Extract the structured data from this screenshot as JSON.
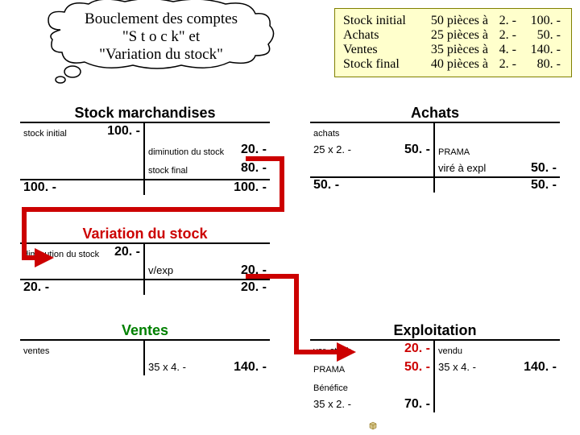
{
  "bubble": {
    "line1": "Bouclement des comptes",
    "line2": "\"S t o c k\" et",
    "line3": "\"Variation du stock\"",
    "stroke": "#000000",
    "fill": "#ffffff"
  },
  "info": {
    "bg": "#ffffcc",
    "border": "#808000",
    "rows": [
      {
        "label": "Stock initial",
        "qty": "50 pièces à",
        "price": "2. -",
        "total": "100. -"
      },
      {
        "label": "Achats",
        "qty": "25 pièces à",
        "price": "2. -",
        "total": "50. -"
      },
      {
        "label": "Ventes",
        "qty": "35 pièces à",
        "price": "4. -",
        "total": "140. -"
      },
      {
        "label": "Stock final",
        "qty": "40 pièces à",
        "price": "2. -",
        "total": "80. -"
      }
    ]
  },
  "accounts": {
    "stock": {
      "title": "Stock marchandises",
      "title_color": "black",
      "rows": [
        {
          "llabel": "stock initial",
          "lamt": "100. -",
          "rlabel": "",
          "ramt": ""
        },
        {
          "llabel": "",
          "lamt": "",
          "rlabel": "diminution du stock",
          "ramt": "20. -"
        },
        {
          "llabel": "",
          "lamt": "",
          "rlabel": "stock final",
          "ramt": "80. -"
        }
      ],
      "close": {
        "l": "100. -",
        "r": "100. -"
      }
    },
    "achats": {
      "title": "Achats",
      "title_color": "black",
      "rows": [
        {
          "llabel": "achats",
          "lamt": "",
          "rlabel": "",
          "ramt": ""
        },
        {
          "llabel": "25 x 2. -",
          "lamt": "50. -",
          "rlabel": "PRAMA",
          "ramt": ""
        },
        {
          "llabel": "",
          "lamt": "",
          "rlabel": "viré à expl",
          "ramt": "50. -"
        }
      ],
      "close": {
        "l": "50. -",
        "r": "50. -"
      }
    },
    "variation": {
      "title": "Variation du stock",
      "title_color": "red",
      "rows": [
        {
          "llabel": "diminution du stock",
          "lamt": "20. -",
          "rlabel": "",
          "ramt": ""
        },
        {
          "llabel": "",
          "lamt": "",
          "rlabel": "v/exp",
          "ramt": "20. -"
        }
      ],
      "close": {
        "l": "20. -",
        "r": "20. -"
      }
    },
    "ventes": {
      "title": "Ventes",
      "title_color": "green",
      "rows": [
        {
          "llabel": "ventes",
          "lamt": "",
          "rlabel": "",
          "ramt": ""
        },
        {
          "llabel": "",
          "lamt": "",
          "rlabel": "35 x 4. -",
          "ramt": "140. -"
        }
      ]
    },
    "exploitation": {
      "title": "Exploitation",
      "title_color": "black",
      "rows": [
        {
          "llabel": "var. stock",
          "lamt": "20. -",
          "rlabel": "vendu",
          "ramt": ""
        },
        {
          "llabel": "PRAMA",
          "lamt": "50. -",
          "rlabel": "35 x 4. -",
          "ramt": "140. -"
        },
        {
          "llabel": "Bénéfice",
          "lamt": "",
          "rlabel": "",
          "ramt": ""
        },
        {
          "llabel": "35 x 2. -",
          "lamt": "70. -",
          "rlabel": "",
          "ramt": ""
        }
      ]
    }
  },
  "arrows": {
    "stroke": "#cc0000",
    "width": 6
  }
}
